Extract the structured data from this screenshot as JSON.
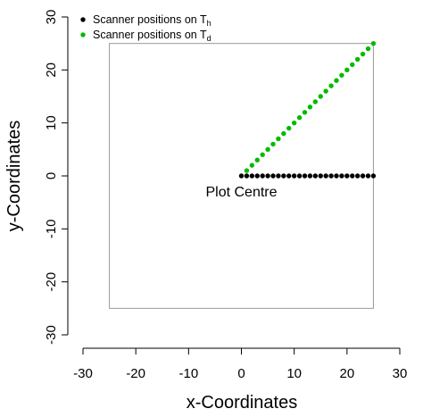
{
  "chart_data": {
    "type": "scatter",
    "xlabel": "x-Coordinates",
    "ylabel": "y-Coordinates",
    "xlim": [
      -30,
      30
    ],
    "ylim": [
      -30,
      30
    ],
    "xticks": [
      -30,
      -20,
      -10,
      0,
      10,
      20,
      30
    ],
    "yticks": [
      -30,
      -20,
      -10,
      0,
      10,
      20,
      30
    ],
    "grid": false,
    "legend_position": "top-left",
    "annotation": {
      "text": "Plot Centre",
      "x": 0,
      "y": -3
    },
    "plot_square": {
      "xmin": -25,
      "xmax": 25,
      "ymin": -25,
      "ymax": 25,
      "color": "#999999"
    },
    "series": [
      {
        "legend_main": "Scanner positions on T",
        "legend_sub": "h",
        "color": "#000000",
        "x": [
          0,
          1,
          2,
          3,
          4,
          5,
          6,
          7,
          8,
          9,
          10,
          11,
          12,
          13,
          14,
          15,
          16,
          17,
          18,
          19,
          20,
          21,
          22,
          23,
          24,
          25
        ],
        "y": [
          0,
          0,
          0,
          0,
          0,
          0,
          0,
          0,
          0,
          0,
          0,
          0,
          0,
          0,
          0,
          0,
          0,
          0,
          0,
          0,
          0,
          0,
          0,
          0,
          0,
          0
        ]
      },
      {
        "legend_main": "Scanner positions on T",
        "legend_sub": "d",
        "color": "#00bb00",
        "x": [
          1,
          2,
          3,
          4,
          5,
          6,
          7,
          8,
          9,
          10,
          11,
          12,
          13,
          14,
          15,
          16,
          17,
          18,
          19,
          20,
          21,
          22,
          23,
          24,
          25
        ],
        "y": [
          1,
          2,
          3,
          4,
          5,
          6,
          7,
          8,
          9,
          10,
          11,
          12,
          13,
          14,
          15,
          16,
          17,
          18,
          19,
          20,
          21,
          22,
          23,
          24,
          25
        ]
      }
    ]
  }
}
